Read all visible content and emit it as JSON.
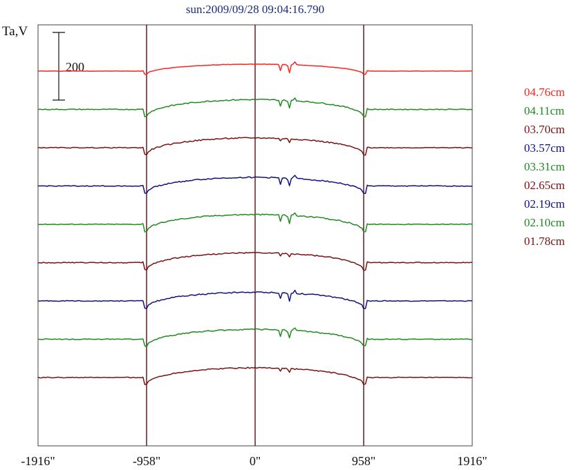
{
  "chart_data": {
    "type": "line",
    "title": "sun:2009/09/28 09:04:16.790",
    "ylabel": "Ta,V",
    "scale_bar_label": "200",
    "scale_bar_value": 200,
    "xlim": [
      -1916,
      1916
    ],
    "x_ticks": [
      {
        "value": -1916,
        "label": "-1916\""
      },
      {
        "value": -958,
        "label": "-958\""
      },
      {
        "value": 0,
        "label": "0\""
      },
      {
        "value": 958,
        "label": "958\""
      },
      {
        "value": 1916,
        "label": "1916\""
      }
    ],
    "vertical_lines": [
      -958,
      0,
      958
    ],
    "series": [
      {
        "name": "04.76cm",
        "color": "#ff2020",
        "profile": "red"
      },
      {
        "name": "04.11cm",
        "color": "#1f8a1f",
        "profile": "green"
      },
      {
        "name": "03.70cm",
        "color": "#7a1010",
        "profile": "dark"
      },
      {
        "name": "03.57cm",
        "color": "#101080",
        "profile": "blue"
      },
      {
        "name": "03.31cm",
        "color": "#1f8a1f",
        "profile": "green"
      },
      {
        "name": "02.65cm",
        "color": "#7a1010",
        "profile": "dark"
      },
      {
        "name": "02.19cm",
        "color": "#101080",
        "profile": "blue"
      },
      {
        "name": "02.10cm",
        "color": "#1f8a1f",
        "profile": "green"
      },
      {
        "name": "01.78cm",
        "color": "#7a1010",
        "profile": "dark"
      }
    ]
  }
}
